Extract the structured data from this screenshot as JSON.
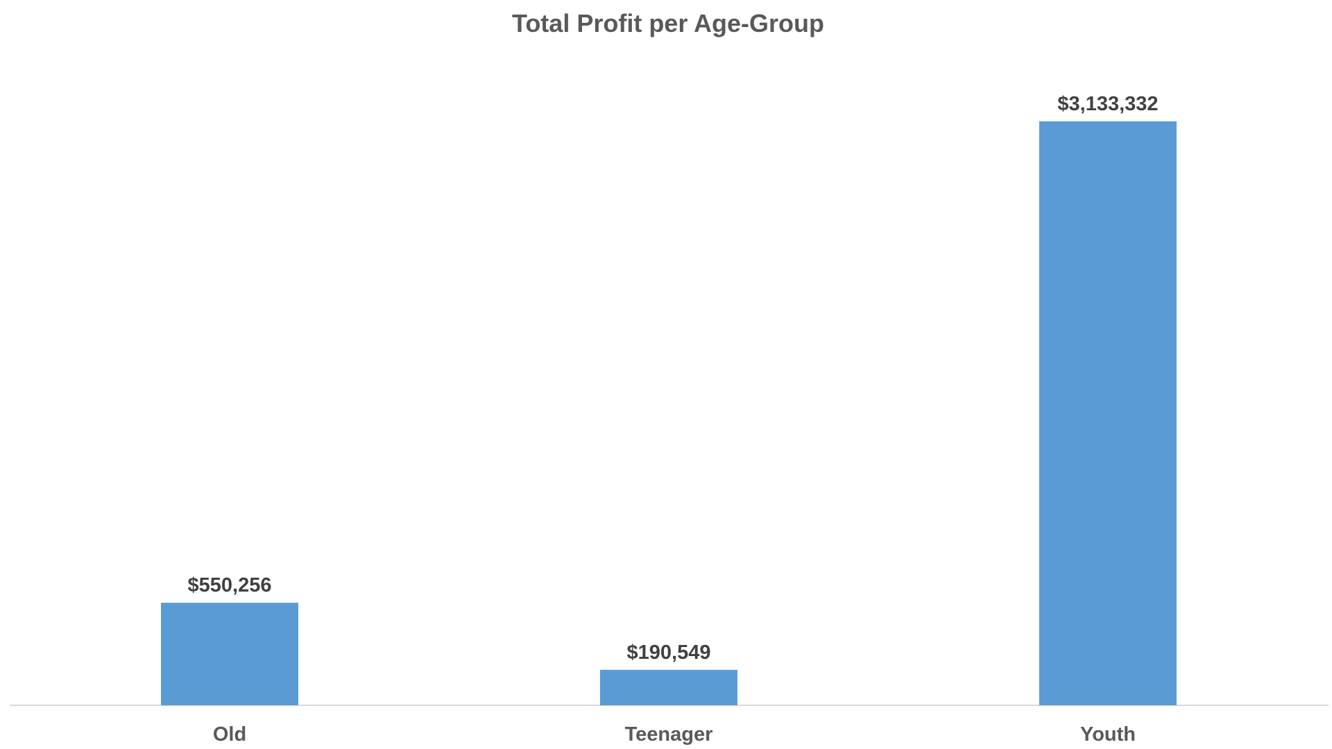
{
  "chart_data": {
    "type": "bar",
    "title": "Total Profit per Age-Group",
    "categories": [
      "Old",
      "Teenager",
      "Youth"
    ],
    "values": [
      550256,
      190549,
      3133332
    ],
    "data_labels": [
      "$550,256",
      "$190,549",
      "$3,133,332"
    ],
    "xlabel": "",
    "ylabel": "",
    "ylim": [
      0,
      3133332
    ],
    "grid": false,
    "legend": "none",
    "bar_color": "#5B9BD5"
  }
}
